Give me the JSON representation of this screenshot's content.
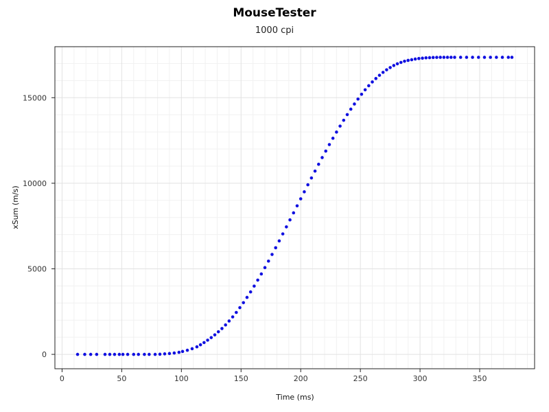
{
  "chart_data": {
    "type": "scatter",
    "title": "MouseTester",
    "subtitle": "1000 cpi",
    "xlabel": "Time (ms)",
    "ylabel": "xSum (m/s)",
    "xlim": [
      -6,
      396
    ],
    "ylim": [
      -840,
      17980
    ],
    "xticks": [
      0,
      50,
      100,
      150,
      200,
      250,
      300,
      350
    ],
    "yticks": [
      0,
      5000,
      10000,
      15000
    ],
    "grid": true,
    "marker_color": "#1010e0",
    "series": [
      {
        "x": [
          13,
          19,
          24,
          29,
          36,
          40,
          44,
          48,
          51,
          55,
          60,
          64,
          69,
          73,
          78,
          82,
          86,
          90,
          94,
          98,
          101,
          105,
          109,
          113,
          116,
          119,
          122,
          125,
          128,
          131,
          134,
          137,
          140,
          143,
          146,
          149,
          152,
          155,
          158,
          161,
          164,
          167,
          170,
          173,
          176,
          179,
          182,
          185,
          188,
          191,
          194,
          197,
          200,
          203,
          206,
          209,
          212,
          215,
          218,
          221,
          224,
          227,
          230,
          233,
          236,
          239,
          242,
          245,
          248,
          251,
          254,
          257,
          260,
          263,
          266,
          269,
          272,
          275,
          278,
          281,
          284,
          287,
          290,
          293,
          296,
          299,
          302,
          305,
          308,
          311,
          314,
          317,
          320,
          323,
          326,
          329,
          334,
          339,
          344,
          349,
          354,
          359,
          364,
          369,
          374,
          377
        ],
        "y": [
          0,
          0,
          0,
          0,
          0,
          0,
          0,
          0,
          0,
          0,
          0,
          0,
          0,
          0,
          0,
          10,
          30,
          50,
          80,
          120,
          170,
          240,
          330,
          440,
          560,
          690,
          830,
          980,
          1140,
          1320,
          1510,
          1720,
          1950,
          2190,
          2450,
          2730,
          3020,
          3330,
          3650,
          3990,
          4340,
          4700,
          5070,
          5450,
          5840,
          6230,
          6630,
          7040,
          7450,
          7860,
          8270,
          8680,
          9090,
          9500,
          9910,
          10310,
          10710,
          11110,
          11500,
          11880,
          12260,
          12630,
          12990,
          13340,
          13680,
          14010,
          14330,
          14630,
          14920,
          15200,
          15460,
          15700,
          15920,
          16120,
          16310,
          16480,
          16630,
          16760,
          16880,
          16980,
          17060,
          17130,
          17180,
          17220,
          17260,
          17290,
          17310,
          17330,
          17340,
          17350,
          17355,
          17360,
          17360,
          17360,
          17360,
          17360,
          17360,
          17360,
          17360,
          17360,
          17360,
          17360,
          17360,
          17360,
          17360,
          17360
        ]
      }
    ]
  }
}
